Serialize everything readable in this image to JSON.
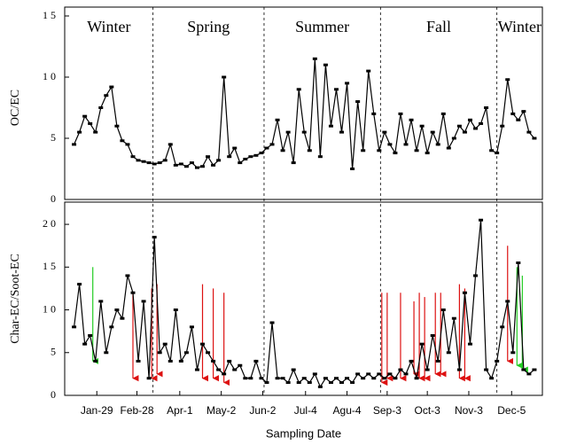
{
  "chart_data": [
    {
      "type": "line",
      "y_label": "OC/EC",
      "x": [
        12,
        16,
        20,
        24,
        28,
        32,
        36,
        40,
        44,
        48,
        52,
        56,
        60,
        64,
        68,
        72,
        76,
        80,
        84,
        88,
        92,
        96,
        100,
        104,
        108,
        112,
        116,
        120,
        124,
        128,
        132,
        136,
        140,
        144,
        148,
        152,
        156,
        160,
        164,
        168,
        172,
        176,
        180,
        184,
        188,
        192,
        196,
        200,
        204,
        208,
        212,
        216,
        220,
        224,
        228,
        232,
        236,
        240,
        244,
        248,
        252,
        256,
        260,
        264,
        268,
        272,
        276,
        280,
        284,
        288,
        292,
        296,
        300,
        304,
        308,
        312,
        316,
        320,
        324,
        328,
        332,
        336,
        340,
        344,
        348,
        352,
        356
      ],
      "series": [
        {
          "color": "#000000",
          "values": [
            4.5,
            5.5,
            6.8,
            6.2,
            5.5,
            7.5,
            8.5,
            9.2,
            6,
            4.8,
            4.5,
            3.5,
            3.2,
            3.1,
            3.0,
            2.9,
            3.0,
            3.2,
            4.5,
            2.8,
            2.9,
            2.7,
            3.0,
            2.6,
            2.7,
            3.5,
            2.8,
            3.2,
            10,
            3.5,
            4.2,
            3.0,
            3.3,
            3.5,
            3.6,
            3.8,
            4.2,
            4.5,
            6.5,
            4.0,
            5.5,
            3.0,
            9.0,
            5.5,
            4.0,
            11.5,
            3.5,
            11.0,
            6.0,
            9.0,
            5.5,
            9.5,
            2.5,
            8.0,
            4.0,
            10.5,
            7.0,
            4.0,
            5.5,
            4.5,
            3.8,
            7.0,
            4.5,
            6.5,
            4.0,
            6.0,
            3.8,
            5.5,
            4.5,
            7.0,
            4.2,
            5.0,
            6.0,
            5.5,
            6.5,
            5.8,
            6.2,
            7.5,
            4.0,
            3.8,
            6.0,
            9.8,
            7.0,
            6.5,
            7.2,
            5.5,
            5.0
          ]
        }
      ],
      "xlim": [
        5,
        362
      ],
      "ylim": [
        0,
        15
      ],
      "yticks": [
        0,
        5,
        {
          "value": 10,
          "label": "1 0"
        },
        {
          "value": 15,
          "label": "1 5"
        }
      ],
      "season_labels": [
        "Winter",
        "Spring",
        "Summer",
        "Fall",
        "Winter"
      ],
      "season_dividers": [
        71,
        154,
        241,
        328
      ]
    },
    {
      "type": "line",
      "y_label": "Char-EC/Soot-EC",
      "x_label": "Sampling Date",
      "x": [
        12,
        16,
        20,
        24,
        28,
        32,
        36,
        40,
        44,
        48,
        52,
        56,
        60,
        64,
        68,
        72,
        76,
        80,
        84,
        88,
        92,
        96,
        100,
        104,
        108,
        112,
        116,
        120,
        124,
        128,
        132,
        136,
        140,
        144,
        148,
        152,
        156,
        160,
        164,
        168,
        172,
        176,
        180,
        184,
        188,
        192,
        196,
        200,
        204,
        208,
        212,
        216,
        220,
        224,
        228,
        232,
        236,
        240,
        244,
        248,
        252,
        256,
        260,
        264,
        268,
        272,
        276,
        280,
        284,
        288,
        292,
        296,
        300,
        304,
        308,
        312,
        316,
        320,
        324,
        328,
        332,
        336,
        340,
        344,
        348,
        352,
        356
      ],
      "series": [
        {
          "color": "#000000",
          "values": [
            8,
            13,
            6,
            7,
            4,
            11,
            5,
            8,
            10,
            9,
            14,
            12,
            4,
            11,
            2,
            18.5,
            5,
            6,
            4,
            10,
            4,
            5,
            8,
            3,
            6,
            5,
            4,
            3,
            2.5,
            4,
            3,
            3.5,
            2,
            2,
            4,
            2,
            1.5,
            8.5,
            2,
            2,
            1.5,
            3,
            1.5,
            2,
            1.5,
            2.5,
            1,
            2,
            1.5,
            2,
            1.5,
            2,
            1.5,
            2.5,
            2,
            2.5,
            2,
            2.5,
            2,
            2.5,
            2,
            3,
            2.5,
            4,
            2,
            6,
            3,
            7,
            4,
            10,
            5,
            9,
            3,
            12,
            6,
            14,
            20.5,
            3,
            2,
            4,
            8,
            11,
            5,
            15.5,
            3,
            2.5,
            3
          ]
        }
      ],
      "arrows": [
        {
          "x": 26,
          "from": 15,
          "to": 4,
          "color": "#22cc22"
        },
        {
          "x": 56,
          "from": 12,
          "to": 2,
          "color": "#dd1111"
        },
        {
          "x": 70,
          "from": 12.5,
          "to": 2,
          "color": "#dd1111"
        },
        {
          "x": 74,
          "from": 13,
          "to": 2.5,
          "color": "#dd1111"
        },
        {
          "x": 108,
          "from": 13,
          "to": 2,
          "color": "#dd1111"
        },
        {
          "x": 116,
          "from": 12.5,
          "to": 2,
          "color": "#dd1111"
        },
        {
          "x": 124,
          "from": 12,
          "to": 1.5,
          "color": "#dd1111"
        },
        {
          "x": 242,
          "from": 12,
          "to": 1.5,
          "color": "#dd1111"
        },
        {
          "x": 246,
          "from": 12,
          "to": 2,
          "color": "#dd1111"
        },
        {
          "x": 256,
          "from": 12,
          "to": 2,
          "color": "#dd1111"
        },
        {
          "x": 266,
          "from": 11,
          "to": 2.5,
          "color": "#dd1111"
        },
        {
          "x": 270,
          "from": 12,
          "to": 2,
          "color": "#dd1111"
        },
        {
          "x": 274,
          "from": 11.5,
          "to": 2,
          "color": "#dd1111"
        },
        {
          "x": 282,
          "from": 12,
          "to": 2.5,
          "color": "#dd1111"
        },
        {
          "x": 286,
          "from": 12,
          "to": 2.5,
          "color": "#dd1111"
        },
        {
          "x": 300,
          "from": 13,
          "to": 2,
          "color": "#dd1111"
        },
        {
          "x": 304,
          "from": 12.5,
          "to": 2,
          "color": "#dd1111"
        },
        {
          "x": 336,
          "from": 17.5,
          "to": 4,
          "color": "#dd1111"
        },
        {
          "x": 343,
          "from": 15,
          "to": 3.5,
          "color": "#22cc22"
        },
        {
          "x": 347,
          "from": 14,
          "to": 3,
          "color": "#22cc22"
        }
      ],
      "xlim": [
        5,
        362
      ],
      "ylim": [
        0,
        22.6
      ],
      "yticks": [
        0,
        5,
        {
          "value": 10,
          "label": "1 0"
        },
        {
          "value": 15,
          "label": "1 5"
        },
        {
          "value": 20,
          "label": "2 0"
        }
      ],
      "xticks": [
        {
          "value": 29,
          "label": "Jan-29"
        },
        {
          "value": 59,
          "label": "Feb-28"
        },
        {
          "value": 91,
          "label": "Apr-1"
        },
        {
          "value": 122,
          "label": "May-2"
        },
        {
          "value": 153,
          "label": "Jun-2"
        },
        {
          "value": 185,
          "label": "Jul-4"
        },
        {
          "value": 216,
          "label": "Agu-4"
        },
        {
          "value": 246,
          "label": "Sep-3"
        },
        {
          "value": 276,
          "label": "Oct-3"
        },
        {
          "value": 307,
          "label": "Nov-3"
        },
        {
          "value": 339,
          "label": "Dec-5"
        }
      ]
    }
  ]
}
